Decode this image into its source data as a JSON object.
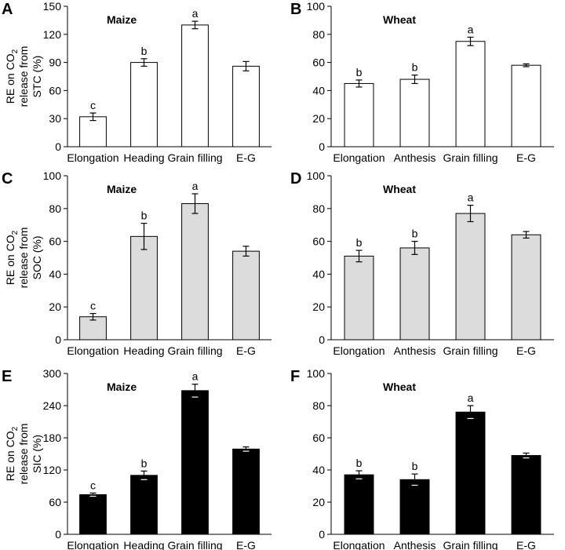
{
  "figure": {
    "caption": "Six-panel bar chart figure",
    "y_axis_subscript": "2"
  },
  "chart_data": [
    {
      "panel": "A",
      "type": "bar",
      "title": "Maize",
      "ylabel": "RE on CO2 release from STC (%)",
      "ylabel_lines": [
        "RE on CO",
        "release from",
        "STC (%)"
      ],
      "categories": [
        "Elongation",
        "Heading",
        "Grain filling",
        "E-G"
      ],
      "values": [
        32,
        90,
        130,
        86
      ],
      "errors": [
        4,
        4,
        4,
        5
      ],
      "letters": [
        "c",
        "b",
        "a",
        ""
      ],
      "ylim": [
        0,
        150
      ],
      "yticks": [
        0,
        30,
        60,
        90,
        120,
        150
      ],
      "fill": "#ffffff"
    },
    {
      "panel": "B",
      "type": "bar",
      "title": "Wheat",
      "ylabel": "",
      "categories": [
        "Elongation",
        "Anthesis",
        "Grain filling",
        "E-G"
      ],
      "values": [
        45,
        48,
        75,
        58
      ],
      "errors": [
        2.5,
        3,
        3,
        1
      ],
      "letters": [
        "b",
        "b",
        "a",
        ""
      ],
      "ylim": [
        0,
        100
      ],
      "yticks": [
        0,
        20,
        40,
        60,
        80,
        100
      ],
      "fill": "#ffffff"
    },
    {
      "panel": "C",
      "type": "bar",
      "title": "Maize",
      "ylabel": "RE on CO2 release from SOC (%)",
      "ylabel_lines": [
        "RE on CO",
        "release from",
        "SOC (%)"
      ],
      "categories": [
        "Elongation",
        "Heading",
        "Grain filling",
        "E-G"
      ],
      "values": [
        14,
        63,
        83,
        54
      ],
      "errors": [
        2,
        8,
        6,
        3
      ],
      "letters": [
        "c",
        "b",
        "a",
        ""
      ],
      "ylim": [
        0,
        100
      ],
      "yticks": [
        0,
        20,
        40,
        60,
        80,
        100
      ],
      "fill": "#dcdcdc"
    },
    {
      "panel": "D",
      "type": "bar",
      "title": "Wheat",
      "ylabel": "",
      "categories": [
        "Elongation",
        "Anthesis",
        "Grain filling",
        "E-G"
      ],
      "values": [
        51,
        56,
        77,
        64
      ],
      "errors": [
        3.5,
        4,
        5,
        2
      ],
      "letters": [
        "b",
        "b",
        "a",
        ""
      ],
      "ylim": [
        0,
        100
      ],
      "yticks": [
        0,
        20,
        40,
        60,
        80,
        100
      ],
      "fill": "#dcdcdc"
    },
    {
      "panel": "E",
      "type": "bar",
      "title": "Maize",
      "ylabel": "RE on CO2 release from SIC (%)",
      "ylabel_lines": [
        "RE on CO",
        "release from",
        "SIC (%)"
      ],
      "categories": [
        "Elongation",
        "Heading",
        "Grain filling",
        "E-G"
      ],
      "values": [
        74,
        110,
        268,
        159
      ],
      "errors": [
        3,
        8,
        12,
        4
      ],
      "letters": [
        "c",
        "b",
        "a",
        ""
      ],
      "ylim": [
        0,
        300
      ],
      "yticks": [
        0,
        60,
        120,
        180,
        240,
        300
      ],
      "fill": "#000000"
    },
    {
      "panel": "F",
      "type": "bar",
      "title": "Wheat",
      "ylabel": "",
      "categories": [
        "Elongation",
        "Anthesis",
        "Grain filling",
        "E-G"
      ],
      "values": [
        37,
        34,
        76,
        49
      ],
      "errors": [
        2.5,
        3.5,
        4,
        1.5
      ],
      "letters": [
        "b",
        "b",
        "a",
        ""
      ],
      "ylim": [
        0,
        100
      ],
      "yticks": [
        0,
        20,
        40,
        60,
        80,
        100
      ],
      "fill": "#000000"
    }
  ]
}
